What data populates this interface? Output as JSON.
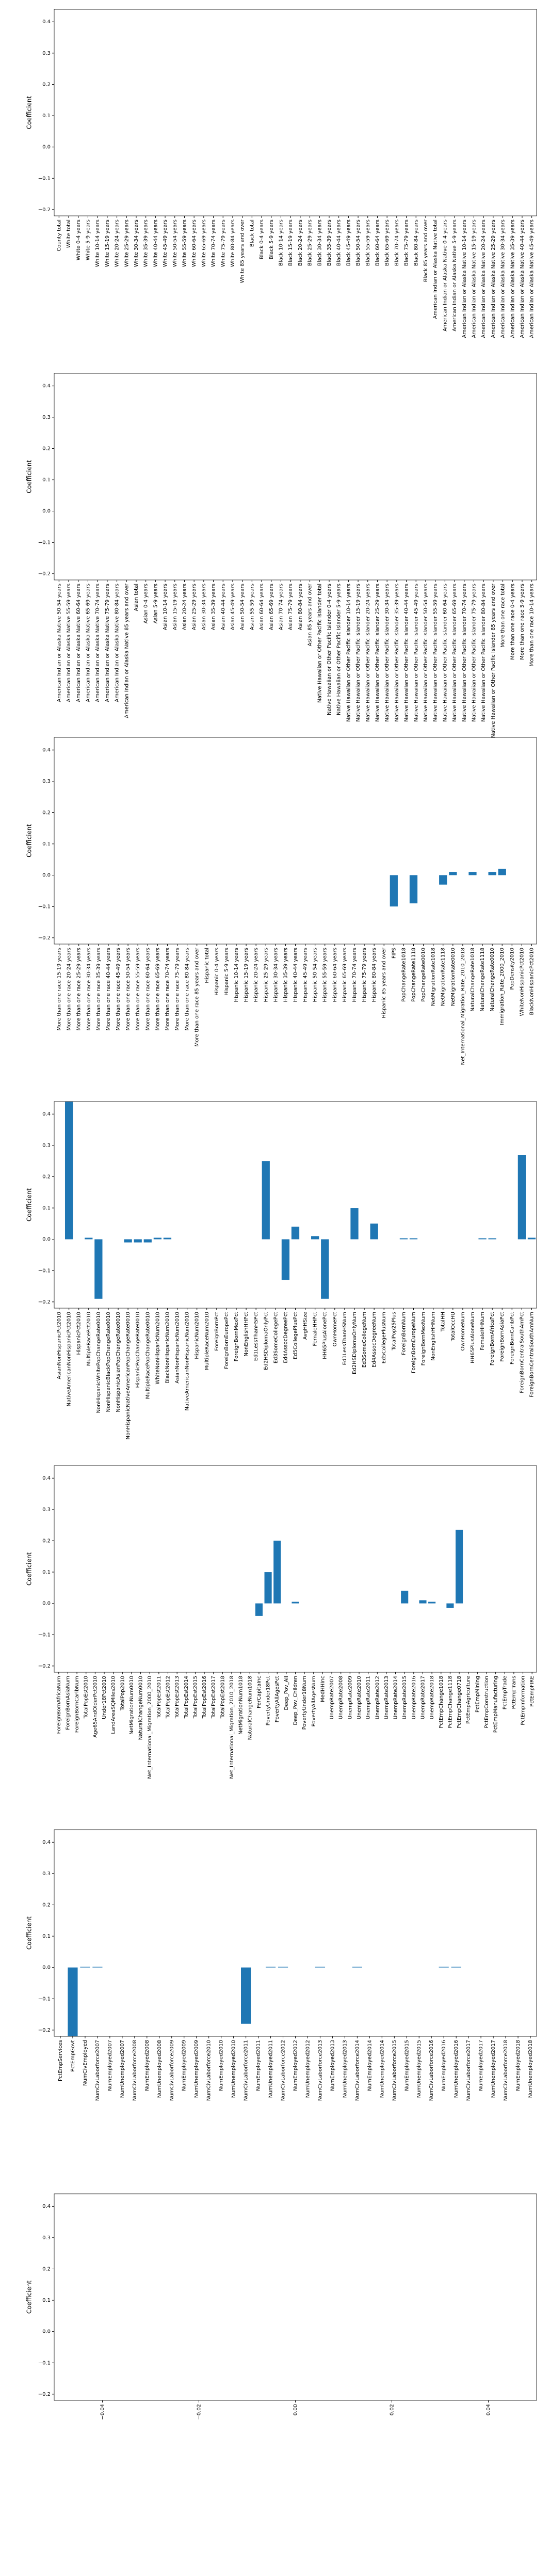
{
  "chart_data": [
    {
      "type": "bar",
      "ylabel": "Coefficient",
      "color": "#1f77b4",
      "ylim": [
        -0.22,
        0.44
      ],
      "yticks": [
        {
          "value": -0.2,
          "label": "−0.2"
        },
        {
          "value": -0.1,
          "label": "−0.1"
        },
        {
          "value": 0,
          "label": "0.0"
        },
        0.1,
        0.2,
        0.3,
        0.4
      ],
      "categories": [
        "County total",
        "White total",
        "White 0-4 years",
        "White 5-9 years",
        "White 10-14 years",
        "White 15-19 years",
        "White 20-24 years",
        "White 25-29 years",
        "White 30-34 years",
        "White 35-39 years",
        "White 40-44 years",
        "White 45-49 years",
        "White 50-54 years",
        "White 55-59 years",
        "White 60-64 years",
        "White 65-69 years",
        "White 70-74 years",
        "White 75-79 years",
        "White 80-84 years",
        "White 85 years and over",
        "Black total",
        "Black 0-4 years",
        "Black 5-9 years",
        "Black 10-14 years",
        "Black 15-19 years",
        "Black 20-24 years",
        "Black 25-29 years",
        "Black 30-34 years",
        "Black 35-39 years",
        "Black 40-44 years",
        "Black 45-49 years",
        "Black 50-54 years",
        "Black 55-59 years",
        "Black 60-64 years",
        "Black 65-69 years",
        "Black 70-74 years",
        "Black 75-79 years",
        "Black 80-84 years",
        "Black 85 years and over",
        "American Indian or Alaska Native total",
        "American Indian or Alaska Native 0-4 years",
        "American Indian or Alaska Native 5-9 years",
        "American Indian or Alaska Native 10-14 years",
        "American Indian or Alaska Native 15-19 years",
        "American Indian or Alaska Native 20-24 years",
        "American Indian or Alaska Native 25-29 years",
        "American Indian or Alaska Native 30-34 years",
        "American Indian or Alaska Native 35-39 years",
        "American Indian or Alaska Native 40-44 years",
        "American Indian or Alaska Native 45-49 years"
      ],
      "values": [
        0,
        0,
        0,
        0,
        0,
        0,
        0,
        0,
        0,
        0,
        0,
        0,
        0,
        0,
        0,
        0,
        0,
        0,
        0,
        0,
        0,
        0,
        0,
        0,
        0,
        0,
        0,
        0,
        0,
        0,
        0,
        0,
        0,
        0,
        0,
        0,
        0,
        0,
        0,
        0,
        0,
        0,
        0,
        0,
        0,
        0,
        0,
        0,
        0,
        0
      ]
    },
    {
      "type": "bar",
      "ylabel": "Coefficient",
      "color": "#1f77b4",
      "ylim": [
        -0.22,
        0.44
      ],
      "yticks": [
        {
          "value": -0.2,
          "label": "−0.2"
        },
        {
          "value": -0.1,
          "label": "−0.1"
        },
        {
          "value": 0,
          "label": "0.0"
        },
        0.1,
        0.2,
        0.3,
        0.4
      ],
      "categories": [
        "American Indian or Alaska Native 50-54 years",
        "American Indian or Alaska Native 55-59 years",
        "American Indian or Alaska Native 60-64 years",
        "American Indian or Alaska Native 65-69 years",
        "American Indian or Alaska Native 70-74 years",
        "American Indian or Alaska Native 75-79 years",
        "American Indian or Alaska Native 80-84 years",
        "American Indian or Alaska Native 85 years and over",
        "Asian total",
        "Asian 0-4 years",
        "Asian 5-9 years",
        "Asian 10-14 years",
        "Asian 15-19 years",
        "Asian 20-24 years",
        "Asian 25-29 years",
        "Asian 30-34 years",
        "Asian 35-39 years",
        "Asian 40-44 years",
        "Asian 45-49 years",
        "Asian 50-54 years",
        "Asian 55-59 years",
        "Asian 60-64 years",
        "Asian 65-69 years",
        "Asian 70-74 years",
        "Asian 75-79 years",
        "Asian 80-84 years",
        "Asian 85 years and over",
        "Native Hawaiian or Other Pacific Islander total",
        "Native Hawaiian or Other Pacific Islander 0-4 years",
        "Native Hawaiian or Other Pacific Islander 5-9 years",
        "Native Hawaiian or Other Pacific Islander 10-14 years",
        "Native Hawaiian or Other Pacific Islander 15-19 years",
        "Native Hawaiian or Other Pacific Islander 20-24 years",
        "Native Hawaiian or Other Pacific Islander 25-29 years",
        "Native Hawaiian or Other Pacific Islander 30-34 years",
        "Native Hawaiian or Other Pacific Islander 35-39 years",
        "Native Hawaiian or Other Pacific Islander 40-44 years",
        "Native Hawaiian or Other Pacific Islander 45-49 years",
        "Native Hawaiian or Other Pacific Islander 50-54 years",
        "Native Hawaiian or Other Pacific Islander 55-59 years",
        "Native Hawaiian or Other Pacific Islander 60-64 years",
        "Native Hawaiian or Other Pacific Islander 65-69 years",
        "Native Hawaiian or Other Pacific Islander 70-74 years",
        "Native Hawaiian or Other Pacific Islander 75-79 years",
        "Native Hawaiian or Other Pacific Islander 80-84 years",
        "Native Hawaiian or Other Pacific Islander 85 years and over",
        "More than one race total",
        "More than one race 0-4 years",
        "More than one race 5-9 years",
        "More than one race 10-14 years"
      ],
      "values": [
        0,
        0,
        0,
        0,
        0,
        0,
        0,
        0,
        0,
        0,
        0,
        0,
        0,
        0,
        0,
        0,
        0,
        0,
        0,
        0,
        0,
        0,
        0,
        0,
        0,
        0,
        0,
        0,
        0,
        0,
        0,
        0,
        0,
        0,
        0,
        0,
        0,
        0,
        0,
        0,
        0,
        0,
        0,
        0,
        0,
        0,
        0,
        0,
        0,
        0
      ]
    },
    {
      "type": "bar",
      "ylabel": "Coefficient",
      "color": "#1f77b4",
      "ylim": [
        -0.22,
        0.44
      ],
      "yticks": [
        {
          "value": -0.2,
          "label": "−0.2"
        },
        {
          "value": -0.1,
          "label": "−0.1"
        },
        {
          "value": 0,
          "label": "0.0"
        },
        0.1,
        0.2,
        0.3,
        0.4
      ],
      "categories": [
        "More than one race 15-19 years",
        "More than one race 20-24 years",
        "More than one race 25-29 years",
        "More than one race 30-34 years",
        "More than one race 35-39 years",
        "More than one race 40-44 years",
        "More than one race 45-49 years",
        "More than one race 50-54 years",
        "More than one race 55-59 years",
        "More than one race 60-64 years",
        "More than one race 65-69 years",
        "More than one race 70-74 years",
        "More than one race 75-79 years",
        "More than one race 80-84 years",
        "More than one race 85 years and over",
        "Hispanic total",
        "Hispanic 0-4 years",
        "Hispanic 5-9 years",
        "Hispanic 10-14 years",
        "Hispanic 15-19 years",
        "Hispanic 20-24 years",
        "Hispanic 25-29 years",
        "Hispanic 30-34 years",
        "Hispanic 35-39 years",
        "Hispanic 40-44 years",
        "Hispanic 45-49 years",
        "Hispanic 50-54 years",
        "Hispanic 55-59 years",
        "Hispanic 60-64 years",
        "Hispanic 65-69 years",
        "Hispanic 70-74 years",
        "Hispanic 75-79 years",
        "Hispanic 80-84 years",
        "Hispanic 85 years and over",
        "FIPS",
        "PopChangeRate1018",
        "PopChangeRate1118",
        "PopChangeRate0010",
        "NetMigrationRate1018",
        "NetMigrationRate1118",
        "NetMigrationRate0010",
        "Net_International_Migration_Rate_2010_2018",
        "NaturalChangeRate1018",
        "NaturalChangeRate1118",
        "NaturalChangeRate0010",
        "Immigration_Rate_2000_2010",
        "PopDensity2010",
        "WhiteNonHispanicPct2010",
        "BlackNonHispanicPct2010"
      ],
      "values": [
        0,
        0,
        0,
        0,
        0,
        0,
        0,
        0,
        0,
        0,
        0,
        0,
        0,
        0,
        0,
        0,
        0,
        0,
        0,
        0,
        0,
        0,
        0,
        0,
        0,
        0,
        0,
        0,
        0,
        0,
        0,
        0,
        0,
        0,
        -0.1,
        0,
        -0.09,
        0,
        0,
        -0.03,
        0.01,
        0,
        0.01,
        0,
        0.01,
        0.02,
        0,
        0,
        0
      ]
    },
    {
      "type": "bar",
      "ylabel": "Coefficient",
      "color": "#1f77b4",
      "ylim": [
        -0.22,
        0.44
      ],
      "yticks": [
        {
          "value": -0.2,
          "label": "−0.2"
        },
        {
          "value": -0.1,
          "label": "−0.1"
        },
        {
          "value": 0,
          "label": "0.0"
        },
        0.1,
        0.2,
        0.3,
        0.4
      ],
      "categories": [
        "AsianNonHispanicPct2010",
        "NativeAmericanNonHispanicPct2010",
        "HispanicPct2010",
        "MultipleRacePct2010",
        "NonHispanicWhitePopChangeRate0010",
        "NonHispanicBlackPopChangeRate0010",
        "NonHispanicAsianPopChangeRate0010",
        "NonHispanicNativeAmericanPopChangeRate0010",
        "HispanicPopChangeRate0010",
        "MultipleRacePopChangeRate0010",
        "WhiteNonHispanicNum2010",
        "BlackNonHispanicNum2010",
        "AsianNonHispanicNum2010",
        "NativeAmericanNonHispanicNum2010",
        "HispanicNum2010",
        "MultipleRaceNum2010",
        "ForeignBornPct",
        "ForeignBornEuropePct",
        "ForeignBornMexPct",
        "NonEnglishHHPct",
        "Ed1LessThanHSPct",
        "Ed2HSDiplomaOnlyPct",
        "Ed3SomeCollegePct",
        "Ed4AssocDegreePct",
        "Ed5CollegePlusPct",
        "AvgHHSize",
        "FemaleHHPct",
        "HH65PlusAlonePct",
        "OwnHomePct",
        "Ed1LessThanHSNum",
        "Ed2HSDiplomaOnlyNum",
        "Ed3SomeCollegeNum",
        "Ed4AssocDegreeNum",
        "Ed5CollegePlusNum",
        "TotalPop25Plus",
        "ForeignBornNum",
        "ForeignBornEuropeNum",
        "ForeignBornMexNum",
        "NonEnglishHHNum",
        "TotalHH",
        "TotalOccHU",
        "OwnHomeNum",
        "HH65PlusAloneNum",
        "FemaleHHNum",
        "ForeignBornAfricaPct",
        "ForeignBornAsiaPct",
        "ForeignBornCaribPct",
        "ForeignBornCentralSouthAmPct",
        "ForeignBornCentralSouthAmNum"
      ],
      "values": [
        0,
        0.44,
        0,
        0.005,
        -0.19,
        0,
        0,
        -0.01,
        -0.01,
        -0.01,
        0.005,
        0.005,
        0,
        0,
        0,
        0,
        0,
        0,
        0,
        0,
        0,
        0.25,
        0,
        -0.13,
        0.04,
        0,
        0.01,
        -0.19,
        0,
        0,
        0.1,
        0,
        0.05,
        0,
        0,
        0.003,
        0.003,
        0,
        0,
        0,
        0,
        0,
        0,
        0.003,
        0.003,
        0,
        0,
        0.27,
        0.005
      ]
    },
    {
      "type": "bar",
      "ylabel": "Coefficient",
      "color": "#1f77b4",
      "ylim": [
        -0.22,
        0.44
      ],
      "yticks": [
        {
          "value": -0.2,
          "label": "−0.2"
        },
        {
          "value": -0.1,
          "label": "−0.1"
        },
        {
          "value": 0,
          "label": "0.0"
        },
        0.1,
        0.2,
        0.3,
        0.4
      ],
      "categories": [
        "ForeignBornAfricaNum",
        "ForeignBornAsiaNum",
        "ForeignBornCaribNum",
        "TotalPopEst2010",
        "Age65AndOlderPct2010",
        "Under18Pct2010",
        "LandAreaSQMiles2010",
        "TotalPop2010",
        "NetMigrationNum0010",
        "NaturalChangeNum0010",
        "Net_International_Migration_2000_2010",
        "TotalPopEst2011",
        "TotalPopEst2012",
        "TotalPopEst2013",
        "TotalPopEst2014",
        "TotalPopEst2015",
        "TotalPopEst2016",
        "TotalPopEst2017",
        "TotalPopEst2018",
        "Net_International_Migration_2010_2018",
        "NetMigrationNum1018",
        "NaturalChangeNum1018",
        "PerCapitaInc",
        "PovertyUnder18Pct",
        "PovertyAllAgesPct",
        "Deep_Pov_All",
        "Deep_Pov_Children",
        "PovertyUnder18Num",
        "PovertyAllAgesNum",
        "MedHHInc",
        "UnempRate2007",
        "UnempRate2008",
        "UnempRate2009",
        "UnempRate2010",
        "UnempRate2011",
        "UnempRate2012",
        "UnempRate2013",
        "UnempRate2014",
        "UnempRate2015",
        "UnempRate2016",
        "UnempRate2017",
        "UnempRate2018",
        "PctEmpChange1018",
        "PctEmpChange1118",
        "PctEmpChange0718",
        "PctEmpAgriculture",
        "PctEmpMining",
        "PctEmpConstruction",
        "PctEmpManufacturing",
        "PctEmpTrade",
        "PctEmpTrans",
        "PctEmpInformation",
        "PctEmpFIRE"
      ],
      "values": [
        0,
        0,
        0,
        0,
        0,
        0,
        0,
        0,
        0,
        0,
        0,
        0,
        0,
        0,
        0,
        0,
        0,
        0,
        0,
        0,
        0,
        0,
        -0.04,
        0.1,
        0.2,
        0,
        0.005,
        0,
        0,
        0,
        0,
        0,
        0,
        0,
        0,
        0,
        0,
        0,
        0.04,
        0,
        0.01,
        0.005,
        0,
        -0.015,
        0.235,
        0,
        0,
        0,
        0,
        0,
        0,
        0,
        0
      ]
    },
    {
      "type": "bar",
      "ylabel": "Coefficient",
      "color": "#1f77b4",
      "ylim": [
        -0.22,
        0.44
      ],
      "yticks": [
        {
          "value": -0.2,
          "label": "−0.2"
        },
        {
          "value": -0.1,
          "label": "−0.1"
        },
        {
          "value": 0,
          "label": "0.0"
        },
        0.1,
        0.2,
        0.3,
        0.4
      ],
      "categories": [
        "PctEmpServices",
        "PctEmpGovt",
        "NumCivEmployed",
        "NumCivLaborforce2007",
        "NumEmployed2007",
        "NumUnemployed2007",
        "NumCivLaborforce2008",
        "NumEmployed2008",
        "NumUnemployed2008",
        "NumCivLaborforce2009",
        "NumEmployed2009",
        "NumUnemployed2009",
        "NumCivLaborforce2010",
        "NumEmployed2010",
        "NumUnemployed2010",
        "NumCivLaborforce2011",
        "NumEmployed2011",
        "NumUnemployed2011",
        "NumCivLaborforce2012",
        "NumEmployed2012",
        "NumUnemployed2012",
        "NumCivLaborforce2013",
        "NumEmployed2013",
        "NumUnemployed2013",
        "NumCivLaborforce2014",
        "NumEmployed2014",
        "NumUnemployed2014",
        "NumCivLaborforce2015",
        "NumEmployed2015",
        "NumUnemployed2015",
        "NumCivLaborforce2016",
        "NumEmployed2016",
        "NumUnemployed2016",
        "NumCivLaborforce2017",
        "NumEmployed2017",
        "NumUnemployed2017",
        "NumCivLaborforce2018",
        "NumEmployed2018",
        "NumUnemployed2018"
      ],
      "values": [
        0,
        -0.22,
        0.002,
        0.002,
        0,
        0,
        0,
        0,
        0,
        0,
        0,
        0,
        0,
        0,
        0,
        -0.18,
        0,
        0.002,
        0.002,
        0,
        0,
        0.002,
        0,
        0,
        0.002,
        0,
        0,
        0,
        0,
        0,
        0,
        0.002,
        0.002,
        0,
        0,
        0,
        0,
        0,
        0
      ]
    },
    {
      "type": "bar",
      "ylabel": "Coefficient",
      "color": "#1f77b4",
      "ylim": [
        -0.22,
        0.44
      ],
      "yticks": [
        {
          "value": -0.2,
          "label": "−0.2"
        },
        {
          "value": -0.1,
          "label": "−0.1"
        },
        {
          "value": 0,
          "label": "0.0"
        },
        0.1,
        0.2,
        0.3,
        0.4
      ],
      "categories": [],
      "values": [],
      "xlim": [
        -0.05,
        0.05
      ],
      "xticks": [
        {
          "value": -0.04,
          "label": "−0.04"
        },
        {
          "value": -0.02,
          "label": "−0.02"
        },
        {
          "value": 0,
          "label": "0.00"
        },
        0.02,
        0.04
      ]
    }
  ]
}
